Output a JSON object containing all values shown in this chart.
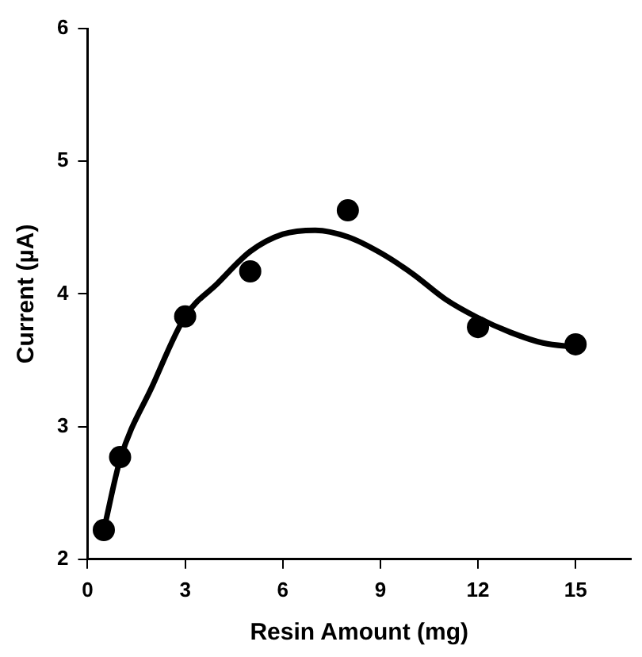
{
  "chart_data": {
    "type": "scatter",
    "xlabel": "Resin Amount (mg)",
    "ylabel": "Current (µA)",
    "xlim": [
      0,
      16.7
    ],
    "xticks": [
      0,
      3,
      6,
      9,
      12,
      15
    ],
    "ylim": [
      2,
      6
    ],
    "yticks": [
      2,
      3,
      4,
      5,
      6
    ],
    "grid": false,
    "legend": false,
    "marker": "circle",
    "series": [
      {
        "color": "#000000",
        "x": [
          0.5,
          1,
          3,
          5,
          8,
          12,
          15
        ],
        "values": [
          2.22,
          2.77,
          3.83,
          4.17,
          4.63,
          3.75,
          3.62
        ]
      },
      {
        "type": "line",
        "color": "#000000",
        "marker": "none",
        "line_style": "solid",
        "x": [
          0.5,
          1,
          2,
          3,
          4,
          5,
          6,
          7,
          8,
          9,
          10,
          11,
          12,
          13,
          14,
          15
        ],
        "values": [
          2.22,
          2.75,
          3.31,
          3.83,
          4.08,
          4.32,
          4.45,
          4.48,
          4.43,
          4.31,
          4.15,
          3.96,
          3.82,
          3.71,
          3.63,
          3.6
        ]
      }
    ]
  }
}
